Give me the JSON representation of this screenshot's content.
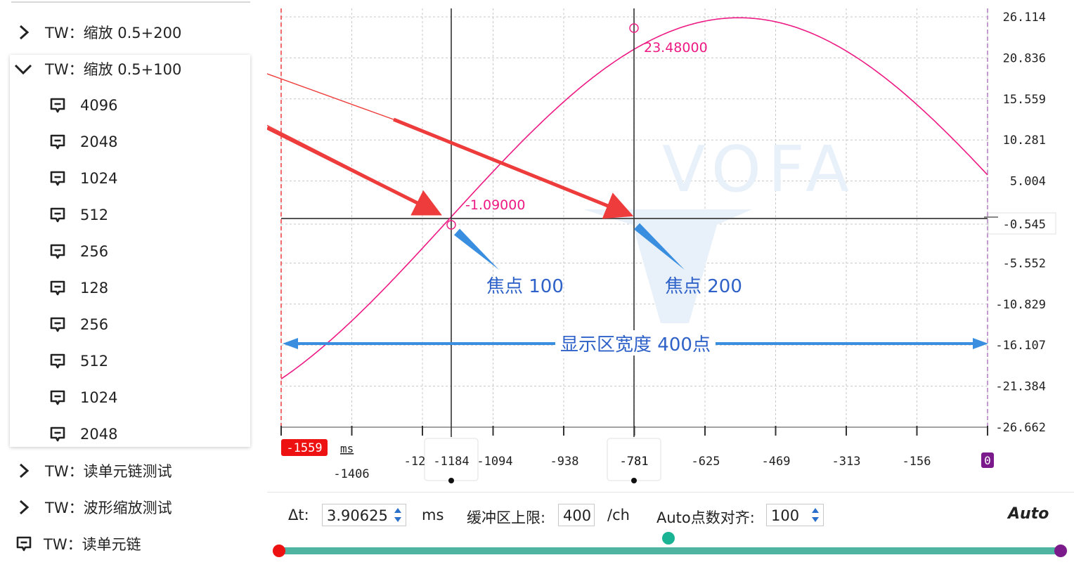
{
  "tree": {
    "node1": {
      "label": "TW：缩放 0.5+200",
      "state": "collapsed"
    },
    "node2": {
      "label": "TW：缩放 0.5+100",
      "state": "expanded"
    },
    "children": [
      "4096",
      "2048",
      "1024",
      "512",
      "256",
      "128",
      "256",
      "512",
      "1024",
      "2048"
    ],
    "node3": {
      "label": "TW：读单元链测试",
      "state": "collapsed"
    },
    "node4": {
      "label": "TW：波形缩放测试",
      "state": "collapsed"
    },
    "node5": {
      "label": "TW：读单元链"
    }
  },
  "plot": {
    "y_ticks": [
      "26.114",
      "20.836",
      "15.559",
      "10.281",
      "5.004",
      "-0.545",
      "-5.552",
      "-10.829",
      "-16.107",
      "-21.384",
      "-26.662"
    ],
    "x_ticks": [
      "-1094",
      "-938",
      "-781",
      "-625",
      "-469",
      "-313",
      "-156"
    ],
    "x_left_label": "-1406",
    "x_partial_label": "-12",
    "x_start": "-1559",
    "x_end": "0",
    "x_unit": "ms",
    "cursor1_label": "-1184",
    "cursor2_label": "-781",
    "marker1_value": "-1.09000",
    "marker2_value": "23.48000",
    "annotation_focus1": "焦点 100",
    "annotation_focus2": "焦点 200",
    "annotation_width": "显示区宽度 400点",
    "watermark": "VOFA",
    "curve_color": "#ee1a84",
    "arrow_red": "#ee3b3b",
    "arrow_blue": "#3a8ee0"
  },
  "toolbar": {
    "dt_label": "Δt:",
    "dt_value": "3.90625",
    "dt_unit": "ms",
    "buffer_label": "缓冲区上限:",
    "buffer_value": "400",
    "buffer_unit": "/ch",
    "align_label": "Auto点数对齐:",
    "align_value": "100",
    "auto_label": "Auto",
    "slider_colors": {
      "start": "#ee1111",
      "mid": "#1ab394",
      "end": "#7b1a8a",
      "track": "#4fb3a2"
    }
  }
}
